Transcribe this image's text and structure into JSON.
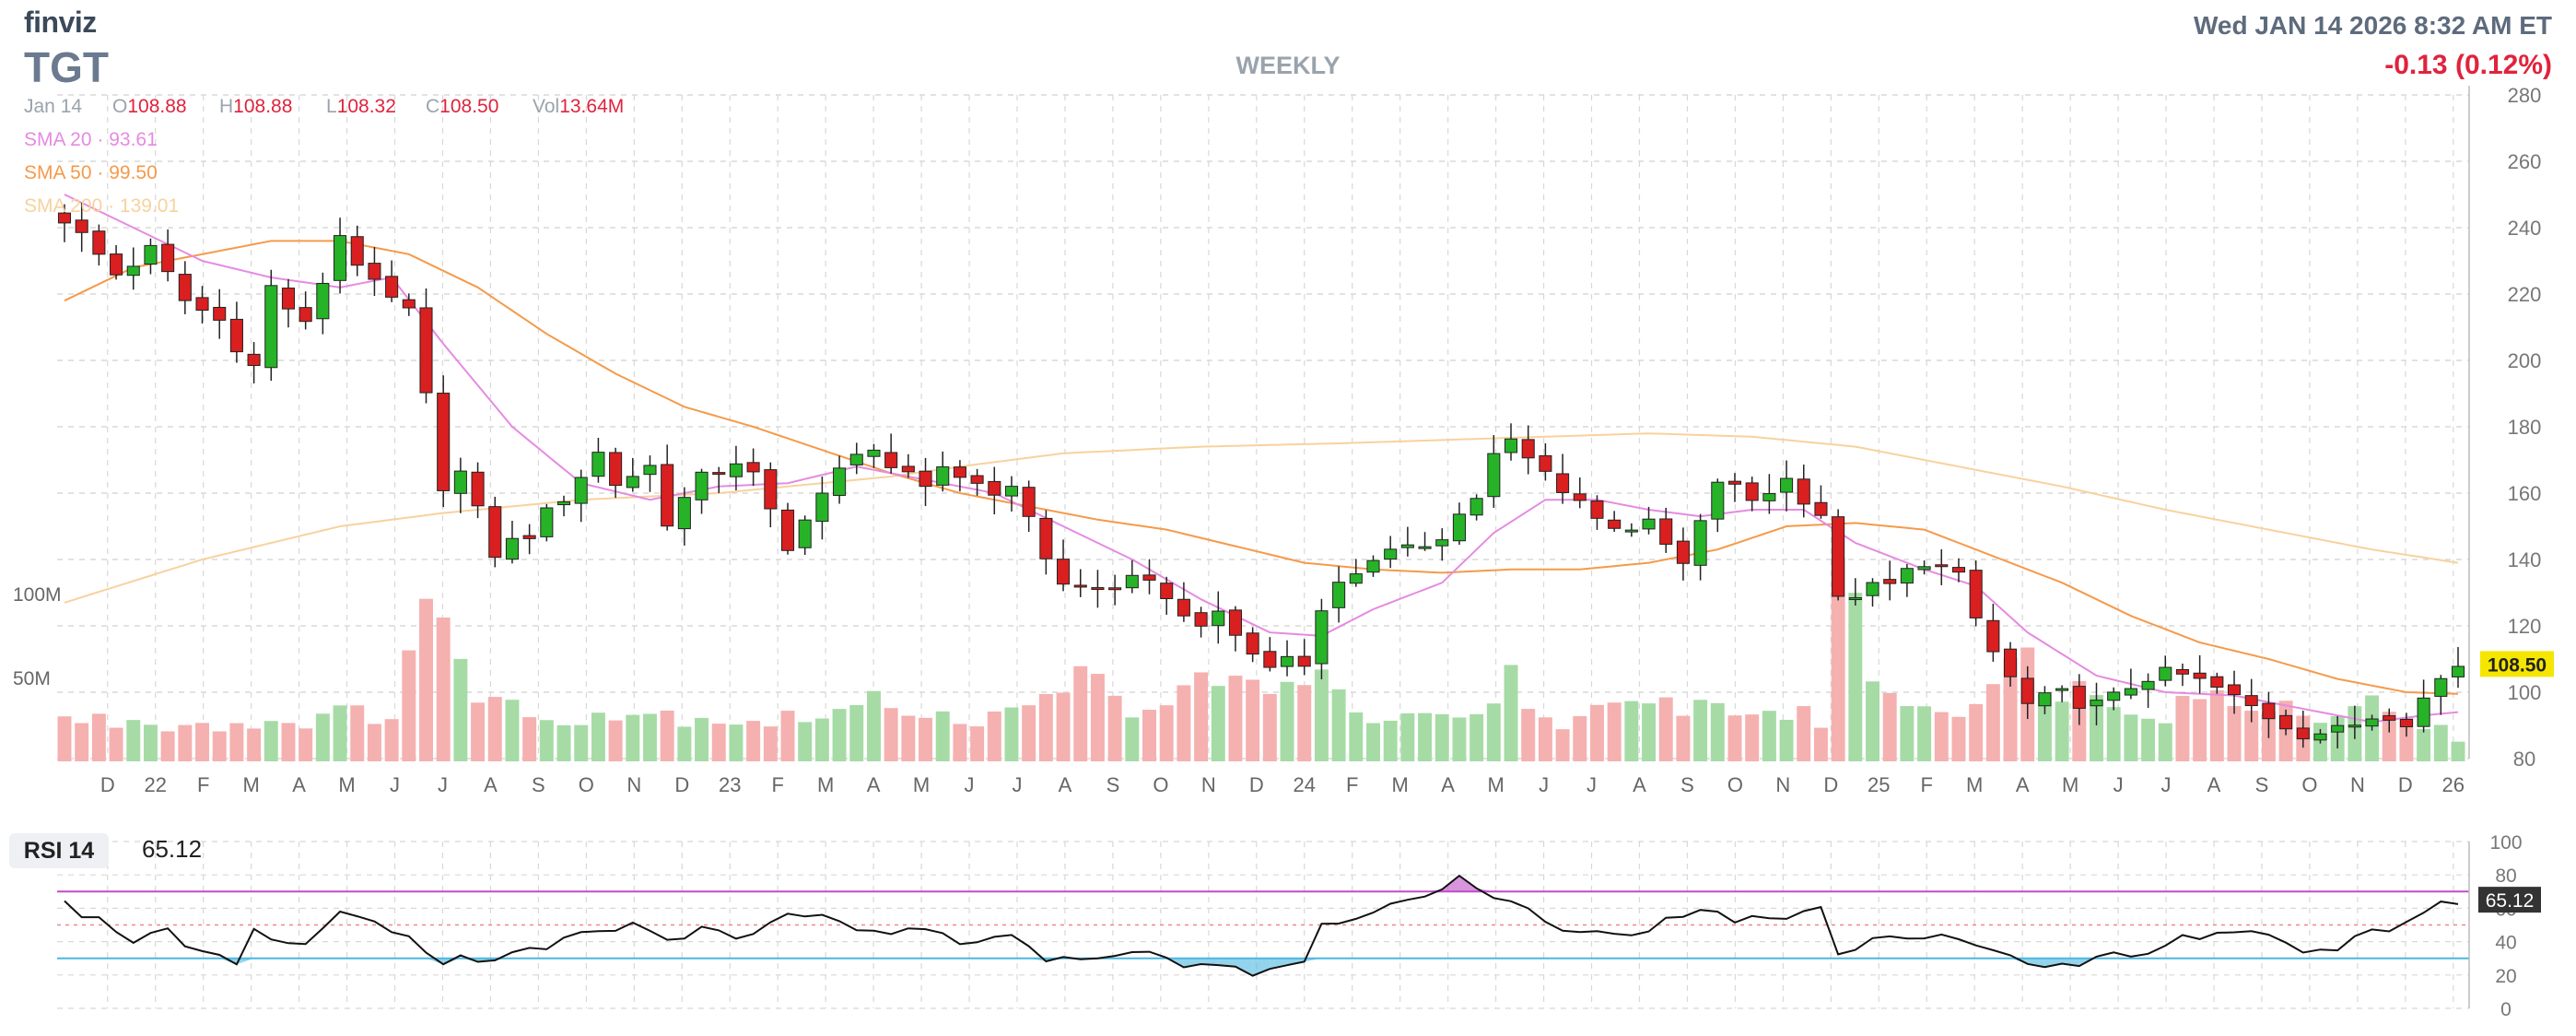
{
  "header": {
    "brand": "finviz",
    "ticker": "TGT",
    "timeframe": "WEEKLY",
    "datetime": "Wed JAN 14 2026 8:32 AM ET",
    "change": "-0.13 (0.12%)"
  },
  "ohlc": {
    "date": "Jan 14",
    "open_label": "O",
    "open": "108.88",
    "high_label": "H",
    "high": "108.88",
    "low_label": "L",
    "low": "108.32",
    "close_label": "C",
    "close": "108.50",
    "vol_label": "Vol",
    "vol": "13.64M"
  },
  "indicators": {
    "sma20_label": "SMA 20",
    "sma20": "93.61",
    "sma50_label": "SMA 50",
    "sma50": "99.50",
    "sma200_label": "SMA 200",
    "sma200": "139.01",
    "rsi_label": "RSI 14",
    "rsi_value": "65.12"
  },
  "colors": {
    "up": "#27b327",
    "down": "#d91f1f",
    "vol_up": "#a6dba6",
    "vol_down": "#f5b0b0",
    "sma20": "#e58be1",
    "sma50": "#f59a4a",
    "sma200": "#f7d29e",
    "rsi_line": "#111111",
    "rsi_upper": "#c04cc8",
    "rsi_lower": "#4bb8e0",
    "grid": "#d8d8d8",
    "last_price_bg": "#f5e600"
  },
  "chart_data": {
    "type": "candlestick",
    "price_axis": {
      "ylim": [
        80,
        280
      ],
      "ticks": [
        80,
        100,
        120,
        140,
        160,
        180,
        200,
        220,
        240,
        260,
        280
      ]
    },
    "volume_axis": {
      "labels": [
        "100M",
        "50M"
      ],
      "max_millions": 110
    },
    "rsi_axis": {
      "ylim": [
        0,
        100
      ],
      "ticks": [
        0,
        20,
        40,
        60,
        80,
        100
      ],
      "overbought": 70,
      "oversold": 30
    },
    "last_price": "108.50",
    "last_rsi": "65.12",
    "x_labels": [
      "D",
      "22",
      "F",
      "M",
      "A",
      "M",
      "J",
      "J",
      "A",
      "S",
      "O",
      "N",
      "D",
      "23",
      "F",
      "M",
      "A",
      "M",
      "J",
      "J",
      "A",
      "S",
      "O",
      "N",
      "D",
      "24",
      "F",
      "M",
      "A",
      "M",
      "J",
      "J",
      "A",
      "S",
      "O",
      "N",
      "D",
      "25",
      "F",
      "M",
      "A",
      "M",
      "J",
      "J",
      "A",
      "S",
      "O",
      "N",
      "D",
      "26"
    ],
    "close_path": [
      [
        0,
        243
      ],
      [
        3,
        226
      ],
      [
        5,
        233
      ],
      [
        7,
        218
      ],
      [
        9,
        212
      ],
      [
        11,
        198
      ],
      [
        12,
        222
      ],
      [
        14,
        210
      ],
      [
        16,
        238
      ],
      [
        18,
        222
      ],
      [
        20,
        214
      ],
      [
        22,
        163
      ],
      [
        23,
        166
      ],
      [
        25,
        142
      ],
      [
        27,
        148
      ],
      [
        29,
        159
      ],
      [
        31,
        172
      ],
      [
        32,
        163
      ],
      [
        34,
        168
      ],
      [
        35,
        152
      ],
      [
        37,
        164
      ],
      [
        39,
        170
      ],
      [
        40,
        165
      ],
      [
        42,
        142
      ],
      [
        43,
        154
      ],
      [
        45,
        166
      ],
      [
        47,
        175
      ],
      [
        48,
        168
      ],
      [
        50,
        160
      ],
      [
        51,
        168
      ],
      [
        53,
        163
      ],
      [
        55,
        160
      ],
      [
        56,
        154
      ],
      [
        57,
        141
      ],
      [
        58,
        132
      ],
      [
        60,
        131
      ],
      [
        62,
        133
      ],
      [
        64,
        130
      ],
      [
        65,
        122
      ],
      [
        67,
        122
      ],
      [
        69,
        112
      ],
      [
        70,
        107
      ],
      [
        71,
        111
      ],
      [
        72,
        108
      ],
      [
        73,
        127
      ],
      [
        74,
        132
      ],
      [
        76,
        141
      ],
      [
        78,
        142
      ],
      [
        80,
        148
      ],
      [
        82,
        159
      ],
      [
        83,
        171
      ],
      [
        84,
        175
      ],
      [
        85,
        170
      ],
      [
        86,
        166
      ],
      [
        88,
        158
      ],
      [
        89,
        152
      ],
      [
        91,
        150
      ],
      [
        92,
        150
      ],
      [
        94,
        138
      ],
      [
        95,
        150
      ],
      [
        96,
        164
      ],
      [
        98,
        158
      ],
      [
        100,
        164
      ],
      [
        102,
        154
      ],
      [
        103,
        127
      ],
      [
        104,
        130
      ],
      [
        106,
        132
      ],
      [
        108,
        140
      ],
      [
        110,
        134
      ],
      [
        111,
        122
      ],
      [
        112,
        112
      ],
      [
        113,
        104
      ],
      [
        114,
        96
      ],
      [
        116,
        99
      ],
      [
        118,
        96
      ],
      [
        119,
        98
      ],
      [
        120,
        102
      ],
      [
        121,
        105
      ],
      [
        123,
        105
      ],
      [
        125,
        101
      ],
      [
        126,
        98
      ],
      [
        128,
        93
      ],
      [
        130,
        88
      ],
      [
        132,
        88
      ],
      [
        134,
        93
      ],
      [
        135,
        94
      ],
      [
        136,
        92
      ],
      [
        137,
        98
      ],
      [
        138,
        104
      ],
      [
        139,
        108.5
      ]
    ],
    "volume_profile_millions": [
      [
        0,
        25
      ],
      [
        10,
        22
      ],
      [
        19,
        30
      ],
      [
        21,
        101
      ],
      [
        23,
        52
      ],
      [
        27,
        26
      ],
      [
        32,
        30
      ],
      [
        41,
        24
      ],
      [
        45,
        30
      ],
      [
        48,
        36
      ],
      [
        53,
        24
      ],
      [
        56,
        30
      ],
      [
        57,
        52
      ],
      [
        60,
        45
      ],
      [
        62,
        24
      ],
      [
        67,
        55
      ],
      [
        70,
        34
      ],
      [
        73,
        65
      ],
      [
        75,
        24
      ],
      [
        82,
        24
      ],
      [
        84,
        52
      ],
      [
        86,
        24
      ],
      [
        94,
        35
      ],
      [
        100,
        28
      ],
      [
        102,
        25
      ],
      [
        103,
        125
      ],
      [
        105,
        50
      ],
      [
        109,
        30
      ],
      [
        112,
        45
      ],
      [
        114,
        60
      ],
      [
        116,
        45
      ],
      [
        122,
        30
      ],
      [
        124,
        45
      ],
      [
        126,
        30
      ],
      [
        128,
        38
      ],
      [
        130,
        28
      ],
      [
        133,
        35
      ],
      [
        136,
        30
      ],
      [
        139,
        12
      ]
    ],
    "rsi_path": [
      [
        0,
        62
      ],
      [
        2,
        52
      ],
      [
        4,
        42
      ],
      [
        6,
        46
      ],
      [
        8,
        34
      ],
      [
        10,
        26
      ],
      [
        11,
        50
      ],
      [
        12,
        42
      ],
      [
        14,
        36
      ],
      [
        16,
        58
      ],
      [
        18,
        55
      ],
      [
        20,
        42
      ],
      [
        22,
        29
      ],
      [
        25,
        31
      ],
      [
        27,
        34
      ],
      [
        30,
        44
      ],
      [
        33,
        50
      ],
      [
        35,
        40
      ],
      [
        37,
        48
      ],
      [
        40,
        42
      ],
      [
        42,
        58
      ],
      [
        44,
        55
      ],
      [
        46,
        48
      ],
      [
        50,
        45
      ],
      [
        53,
        38
      ],
      [
        55,
        42
      ],
      [
        57,
        30
      ],
      [
        60,
        33
      ],
      [
        63,
        36
      ],
      [
        65,
        26
      ],
      [
        67,
        26
      ],
      [
        69,
        19
      ],
      [
        70,
        23
      ],
      [
        72,
        27
      ],
      [
        73,
        50
      ],
      [
        75,
        56
      ],
      [
        77,
        62
      ],
      [
        79,
        66
      ],
      [
        80,
        72
      ],
      [
        81,
        80
      ],
      [
        82,
        70
      ],
      [
        84,
        62
      ],
      [
        86,
        52
      ],
      [
        88,
        45
      ],
      [
        91,
        45
      ],
      [
        93,
        52
      ],
      [
        95,
        58
      ],
      [
        97,
        54
      ],
      [
        100,
        53
      ],
      [
        102,
        60
      ],
      [
        103,
        33
      ],
      [
        105,
        40
      ],
      [
        107,
        42
      ],
      [
        109,
        47
      ],
      [
        111,
        38
      ],
      [
        113,
        30
      ],
      [
        115,
        22
      ],
      [
        117,
        27
      ],
      [
        119,
        32
      ],
      [
        121,
        32
      ],
      [
        123,
        42
      ],
      [
        126,
        47
      ],
      [
        128,
        44
      ],
      [
        130,
        34
      ],
      [
        132,
        35
      ],
      [
        133,
        44
      ],
      [
        135,
        48
      ],
      [
        137,
        58
      ],
      [
        139,
        65
      ]
    ],
    "sma20_path": [
      [
        0,
        250
      ],
      [
        4,
        240
      ],
      [
        8,
        230
      ],
      [
        12,
        225
      ],
      [
        16,
        222
      ],
      [
        19,
        225
      ],
      [
        22,
        205
      ],
      [
        26,
        180
      ],
      [
        30,
        163
      ],
      [
        34,
        158
      ],
      [
        38,
        162
      ],
      [
        42,
        163
      ],
      [
        46,
        168
      ],
      [
        50,
        164
      ],
      [
        54,
        160
      ],
      [
        58,
        150
      ],
      [
        62,
        140
      ],
      [
        66,
        128
      ],
      [
        70,
        118
      ],
      [
        73,
        117
      ],
      [
        76,
        125
      ],
      [
        80,
        133
      ],
      [
        83,
        148
      ],
      [
        86,
        158
      ],
      [
        89,
        158
      ],
      [
        92,
        155
      ],
      [
        95,
        153
      ],
      [
        98,
        155
      ],
      [
        101,
        155
      ],
      [
        104,
        145
      ],
      [
        108,
        137
      ],
      [
        111,
        132
      ],
      [
        114,
        118
      ],
      [
        118,
        105
      ],
      [
        122,
        100
      ],
      [
        126,
        99
      ],
      [
        130,
        95
      ],
      [
        134,
        91
      ],
      [
        137,
        93
      ],
      [
        139,
        94
      ]
    ],
    "sma50_path": [
      [
        0,
        218
      ],
      [
        4,
        228
      ],
      [
        8,
        232
      ],
      [
        12,
        236
      ],
      [
        16,
        236
      ],
      [
        20,
        232
      ],
      [
        24,
        222
      ],
      [
        28,
        208
      ],
      [
        32,
        196
      ],
      [
        36,
        186
      ],
      [
        40,
        180
      ],
      [
        44,
        173
      ],
      [
        48,
        166
      ],
      [
        52,
        160
      ],
      [
        56,
        156
      ],
      [
        60,
        152
      ],
      [
        64,
        149
      ],
      [
        68,
        144
      ],
      [
        72,
        139
      ],
      [
        76,
        137
      ],
      [
        80,
        136
      ],
      [
        84,
        137
      ],
      [
        88,
        137
      ],
      [
        92,
        139
      ],
      [
        96,
        143
      ],
      [
        100,
        150
      ],
      [
        104,
        151
      ],
      [
        108,
        149
      ],
      [
        112,
        141
      ],
      [
        116,
        133
      ],
      [
        120,
        123
      ],
      [
        124,
        115
      ],
      [
        128,
        110
      ],
      [
        132,
        104
      ],
      [
        136,
        100
      ],
      [
        139,
        99.5
      ]
    ],
    "sma200_path": [
      [
        0,
        127
      ],
      [
        8,
        140
      ],
      [
        16,
        150
      ],
      [
        22,
        154
      ],
      [
        30,
        158
      ],
      [
        38,
        160
      ],
      [
        44,
        163
      ],
      [
        48,
        165
      ],
      [
        52,
        168
      ],
      [
        58,
        172
      ],
      [
        66,
        174
      ],
      [
        74,
        175
      ],
      [
        80,
        176
      ],
      [
        86,
        177
      ],
      [
        92,
        178
      ],
      [
        98,
        177
      ],
      [
        104,
        174
      ],
      [
        110,
        168
      ],
      [
        116,
        162
      ],
      [
        122,
        155
      ],
      [
        128,
        149
      ],
      [
        134,
        143
      ],
      [
        139,
        139
      ]
    ]
  }
}
